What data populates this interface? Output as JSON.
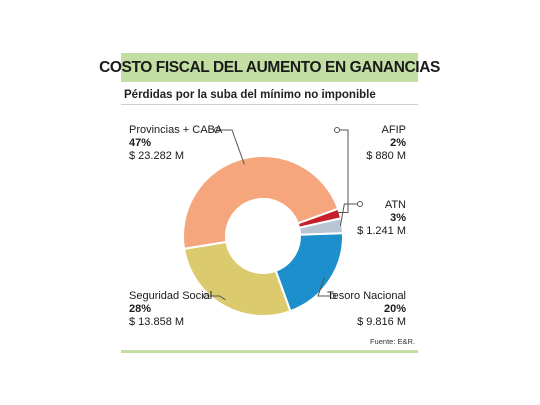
{
  "title": "COSTO FISCAL DEL AUMENTO EN GANANCIAS",
  "subtitle": "Pérdidas por la suba del mínimo no imponible",
  "source": "Fuente: E&R.",
  "colors": {
    "title_bg": "#c3dea2",
    "leader": "#555555"
  },
  "chart_data": {
    "type": "pie",
    "title": "COSTO FISCAL DEL AUMENTO EN GANANCIAS",
    "subtitle": "Pérdidas por la suba del mínimo no imponible",
    "unit": "$ M",
    "slices": [
      {
        "name": "AFIP",
        "percent": 2,
        "percent_label": "2%",
        "value": 880,
        "value_label": "$ 880 M",
        "color": "#c8202b"
      },
      {
        "name": "ATN",
        "percent": 3,
        "percent_label": "3%",
        "value": 1241,
        "value_label": "$ 1.241 M",
        "color": "#b7c6d2"
      },
      {
        "name": "Tesoro Nacional",
        "percent": 20,
        "percent_label": "20%",
        "value": 9816,
        "value_label": "$ 9.816 M",
        "color": "#1d8fcd"
      },
      {
        "name": "Seguridad Social",
        "percent": 28,
        "percent_label": "28%",
        "value": 13858,
        "value_label": "$ 13.858 M",
        "color": "#dccb6e"
      },
      {
        "name": "Provincias + CABA",
        "percent": 47,
        "percent_label": "47%",
        "value": 23282,
        "value_label": "$ 23.282 M",
        "color": "#f6a67d"
      }
    ]
  }
}
